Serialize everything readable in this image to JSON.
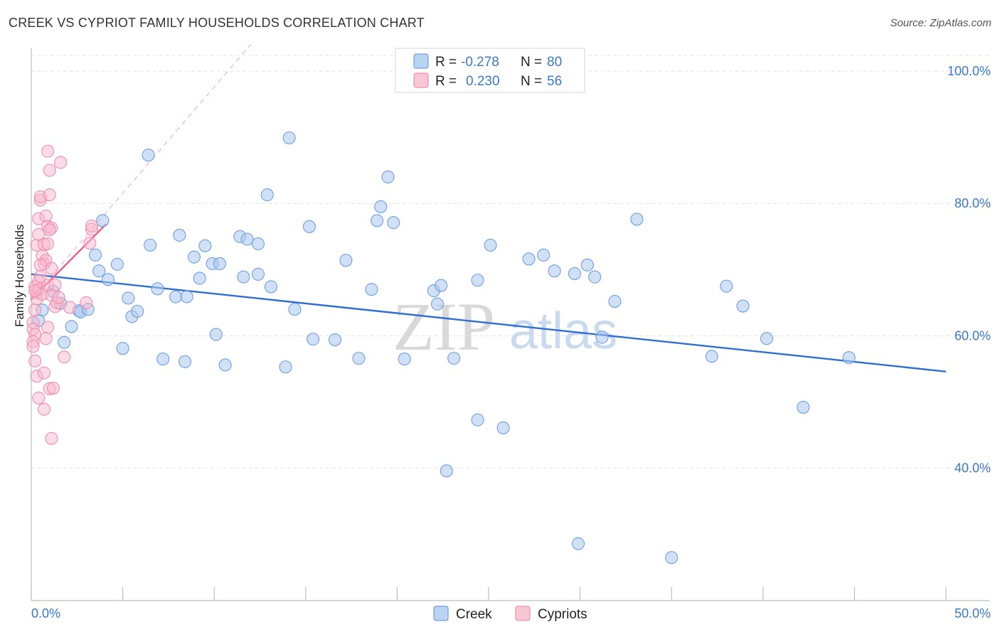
{
  "title": "CREEK VS CYPRIOT FAMILY HOUSEHOLDS CORRELATION CHART",
  "source": "Source: ZipAtlas.com",
  "watermark": {
    "zip": "ZIP",
    "atlas": "atlas"
  },
  "legend": {
    "rows": [
      {
        "r_label": "R =",
        "r_value": "-0.278",
        "n_label": "N =",
        "n_value": "80"
      },
      {
        "r_label": "R =",
        "r_value": "0.230",
        "n_label": "N =",
        "n_value": "56"
      }
    ]
  },
  "bottom_legend": {
    "series0": "Creek",
    "series1": "Cypriots"
  },
  "colors": {
    "creek_fill": "#a9c8f0",
    "creek_stroke": "#6f9fdc",
    "creek_line": "#2f6fcf",
    "cypriot_fill": "#f7b8cc",
    "cypriot_stroke": "#ee8fae",
    "cypriot_line": "#e8608d",
    "grid": "#e3e3e3",
    "axis_text": "#3a78c9"
  },
  "chart_data": {
    "type": "scatter",
    "title": "CREEK VS CYPRIOT FAMILY HOUSEHOLDS CORRELATION CHART",
    "xlabel": "",
    "ylabel": "Family Households",
    "xlim": [
      0,
      50
    ],
    "ylim": [
      20,
      103
    ],
    "x_tick_labels": [
      "0.0%",
      "50.0%"
    ],
    "y_ticks": [
      40,
      60,
      80,
      100
    ],
    "y_tick_labels": [
      "40.0%",
      "60.0%",
      "80.0%",
      "100.0%"
    ],
    "grid": true,
    "series": [
      {
        "name": "Creek",
        "R": -0.278,
        "N": 80,
        "trend": {
          "x": [
            0,
            50
          ],
          "y": [
            69.3,
            54.6
          ]
        },
        "points": [
          [
            2.6,
            63.8
          ],
          [
            1.2,
            66.7
          ],
          [
            0.4,
            62.3
          ],
          [
            0.6,
            63.9
          ],
          [
            1.6,
            64.9
          ],
          [
            2.2,
            61.4
          ],
          [
            1.8,
            59.0
          ],
          [
            2.7,
            63.6
          ],
          [
            3.5,
            72.2
          ],
          [
            3.9,
            77.4
          ],
          [
            4.2,
            68.5
          ],
          [
            3.7,
            69.8
          ],
          [
            4.7,
            70.8
          ],
          [
            3.1,
            64.0
          ],
          [
            5.0,
            58.1
          ],
          [
            5.3,
            65.7
          ],
          [
            5.5,
            62.9
          ],
          [
            5.8,
            63.7
          ],
          [
            6.4,
            87.3
          ],
          [
            6.5,
            73.7
          ],
          [
            6.9,
            67.1
          ],
          [
            7.2,
            56.5
          ],
          [
            7.9,
            65.9
          ],
          [
            8.4,
            56.1
          ],
          [
            8.9,
            71.9
          ],
          [
            8.5,
            65.9
          ],
          [
            8.1,
            75.2
          ],
          [
            9.2,
            68.7
          ],
          [
            9.5,
            73.6
          ],
          [
            9.9,
            70.9
          ],
          [
            10.1,
            60.2
          ],
          [
            10.6,
            55.6
          ],
          [
            10.3,
            70.9
          ],
          [
            11.4,
            75.0
          ],
          [
            11.6,
            68.9
          ],
          [
            11.8,
            74.6
          ],
          [
            12.4,
            73.9
          ],
          [
            12.9,
            81.3
          ],
          [
            12.4,
            69.3
          ],
          [
            13.1,
            67.4
          ],
          [
            14.1,
            89.9
          ],
          [
            13.9,
            55.3
          ],
          [
            14.4,
            64.0
          ],
          [
            15.2,
            76.5
          ],
          [
            15.4,
            59.5
          ],
          [
            16.6,
            59.4
          ],
          [
            17.2,
            71.4
          ],
          [
            17.9,
            56.6
          ],
          [
            18.6,
            67.0
          ],
          [
            19.1,
            79.5
          ],
          [
            19.5,
            84.0
          ],
          [
            19.8,
            77.1
          ],
          [
            22.0,
            66.8
          ],
          [
            22.4,
            67.6
          ],
          [
            22.2,
            64.8
          ],
          [
            23.1,
            56.6
          ],
          [
            24.4,
            68.4
          ],
          [
            25.1,
            73.7
          ],
          [
            18.9,
            77.4
          ],
          [
            20.4,
            56.5
          ],
          [
            24.4,
            47.3
          ],
          [
            25.8,
            46.1
          ],
          [
            22.7,
            39.6
          ],
          [
            27.2,
            71.6
          ],
          [
            28.0,
            72.2
          ],
          [
            28.6,
            69.8
          ],
          [
            29.7,
            69.4
          ],
          [
            30.4,
            70.7
          ],
          [
            30.8,
            68.9
          ],
          [
            31.2,
            59.8
          ],
          [
            31.9,
            65.2
          ],
          [
            33.1,
            77.6
          ],
          [
            29.9,
            28.6
          ],
          [
            35.0,
            26.5
          ],
          [
            37.2,
            56.9
          ],
          [
            38.0,
            67.5
          ],
          [
            38.9,
            64.5
          ],
          [
            42.2,
            49.2
          ],
          [
            40.2,
            59.6
          ],
          [
            44.7,
            56.7
          ]
        ]
      },
      {
        "name": "Cypriots",
        "R": 0.23,
        "N": 56,
        "trend": {
          "x": [
            0,
            4.1
          ],
          "y": [
            65.5,
            76.9
          ]
        },
        "trend_extended": {
          "x": [
            0,
            12.0
          ],
          "y": [
            65.5,
            104.0
          ]
        },
        "points": [
          [
            0.1,
            62.0
          ],
          [
            0.1,
            61.0
          ],
          [
            0.2,
            60.2
          ],
          [
            0.1,
            59.1
          ],
          [
            0.1,
            58.4
          ],
          [
            0.2,
            56.2
          ],
          [
            0.3,
            53.9
          ],
          [
            0.4,
            50.6
          ],
          [
            0.2,
            63.9
          ],
          [
            0.3,
            66.5
          ],
          [
            0.2,
            67.4
          ],
          [
            0.4,
            68.2
          ],
          [
            0.4,
            67.0
          ],
          [
            0.3,
            65.6
          ],
          [
            0.5,
            69.0
          ],
          [
            0.3,
            73.7
          ],
          [
            0.4,
            75.3
          ],
          [
            0.4,
            77.7
          ],
          [
            0.5,
            80.5
          ],
          [
            0.5,
            81.0
          ],
          [
            0.6,
            72.1
          ],
          [
            0.7,
            70.9
          ],
          [
            0.8,
            71.4
          ],
          [
            0.7,
            73.8
          ],
          [
            0.9,
            73.9
          ],
          [
            0.8,
            78.1
          ],
          [
            1.0,
            81.3
          ],
          [
            0.9,
            76.5
          ],
          [
            1.1,
            76.3
          ],
          [
            1.0,
            76.0
          ],
          [
            1.0,
            85.0
          ],
          [
            0.9,
            87.9
          ],
          [
            1.6,
            86.2
          ],
          [
            0.7,
            54.4
          ],
          [
            0.7,
            48.9
          ],
          [
            1.0,
            52.0
          ],
          [
            1.2,
            52.1
          ],
          [
            1.1,
            44.5
          ],
          [
            1.8,
            56.8
          ],
          [
            0.9,
            61.3
          ],
          [
            0.8,
            59.6
          ],
          [
            0.6,
            66.3
          ],
          [
            0.9,
            67.6
          ],
          [
            1.1,
            66.1
          ],
          [
            1.3,
            64.4
          ],
          [
            1.4,
            65.0
          ],
          [
            1.3,
            67.7
          ],
          [
            1.5,
            65.8
          ],
          [
            2.1,
            64.3
          ],
          [
            3.0,
            65.0
          ],
          [
            3.2,
            74.0
          ],
          [
            3.3,
            76.1
          ],
          [
            3.3,
            76.6
          ],
          [
            1.1,
            70.2
          ],
          [
            0.5,
            70.7
          ],
          [
            0.2,
            66.8
          ]
        ]
      }
    ]
  }
}
